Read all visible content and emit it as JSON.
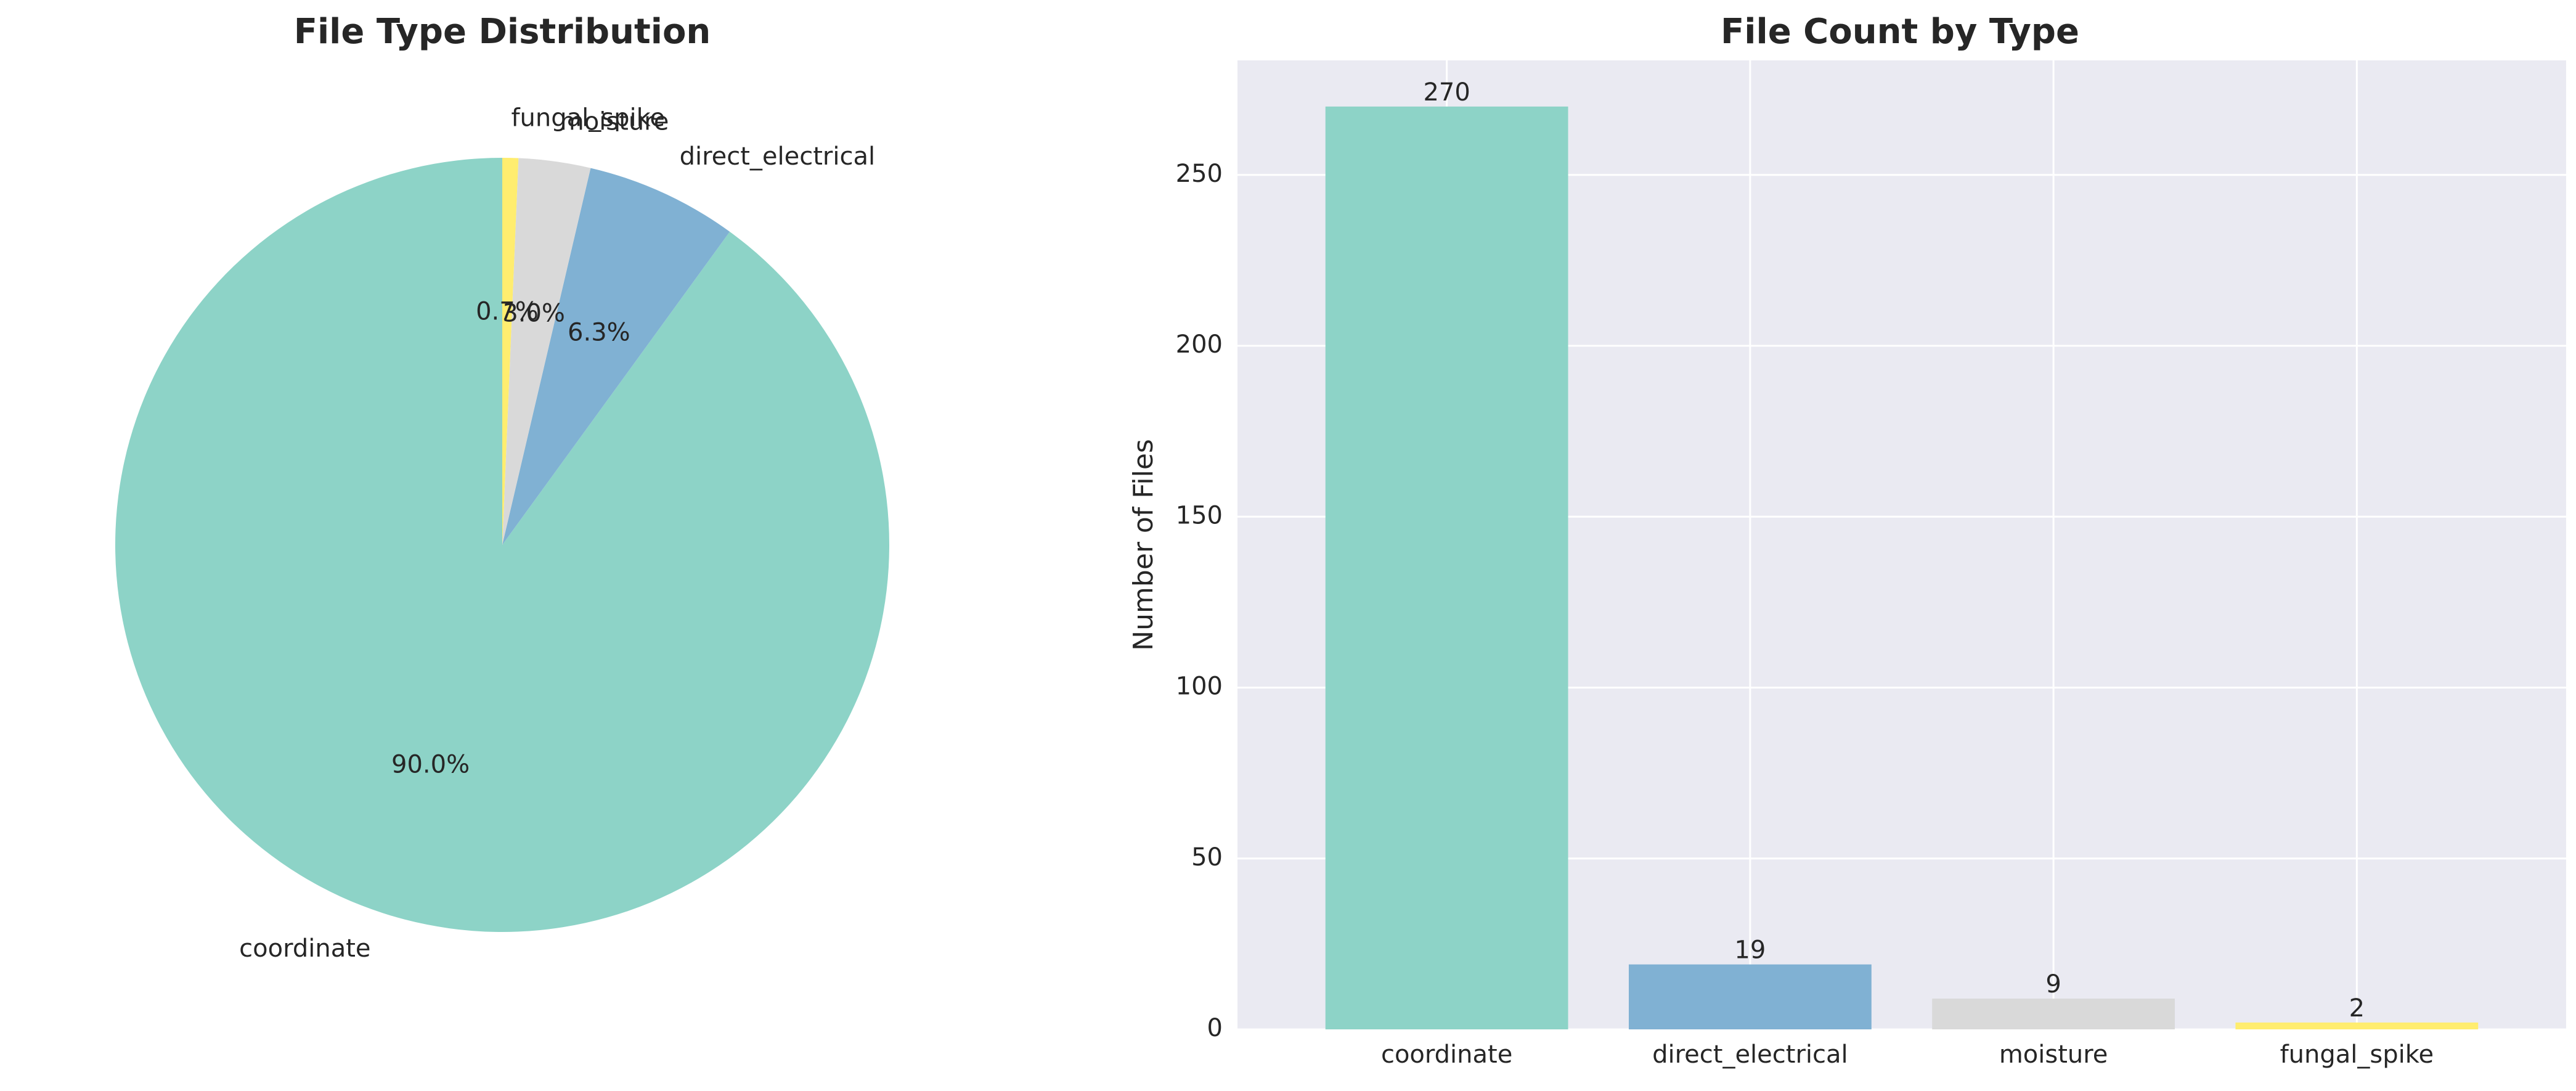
{
  "chart_data": [
    {
      "type": "pie",
      "title": "File Type Distribution",
      "categories": [
        "coordinate",
        "direct_electrical",
        "moisture",
        "fungal_spike"
      ],
      "values": [
        270,
        19,
        9,
        2
      ],
      "percent_labels": [
        "90.0%",
        "6.3%",
        "3.0%",
        "0.7%"
      ],
      "colors": [
        "#8dd3c7",
        "#80b1d3",
        "#d9d9d9",
        "#ffed6f"
      ],
      "start_angle_deg": 90,
      "direction": "counterclockwise"
    },
    {
      "type": "bar",
      "title": "File Count by Type",
      "categories": [
        "coordinate",
        "direct_electrical",
        "moisture",
        "fungal_spike"
      ],
      "values": [
        270,
        19,
        9,
        2
      ],
      "value_labels": [
        "270",
        "19",
        "9",
        "2"
      ],
      "colors": [
        "#8dd3c7",
        "#80b1d3",
        "#d9d9d9",
        "#ffed6f"
      ],
      "xlabel": "",
      "ylabel": "Number of Files",
      "ylim": [
        0,
        283.5
      ],
      "yticks": [
        0,
        50,
        100,
        150,
        200,
        250
      ],
      "grid": true,
      "background": "#eaeaf2"
    }
  ]
}
